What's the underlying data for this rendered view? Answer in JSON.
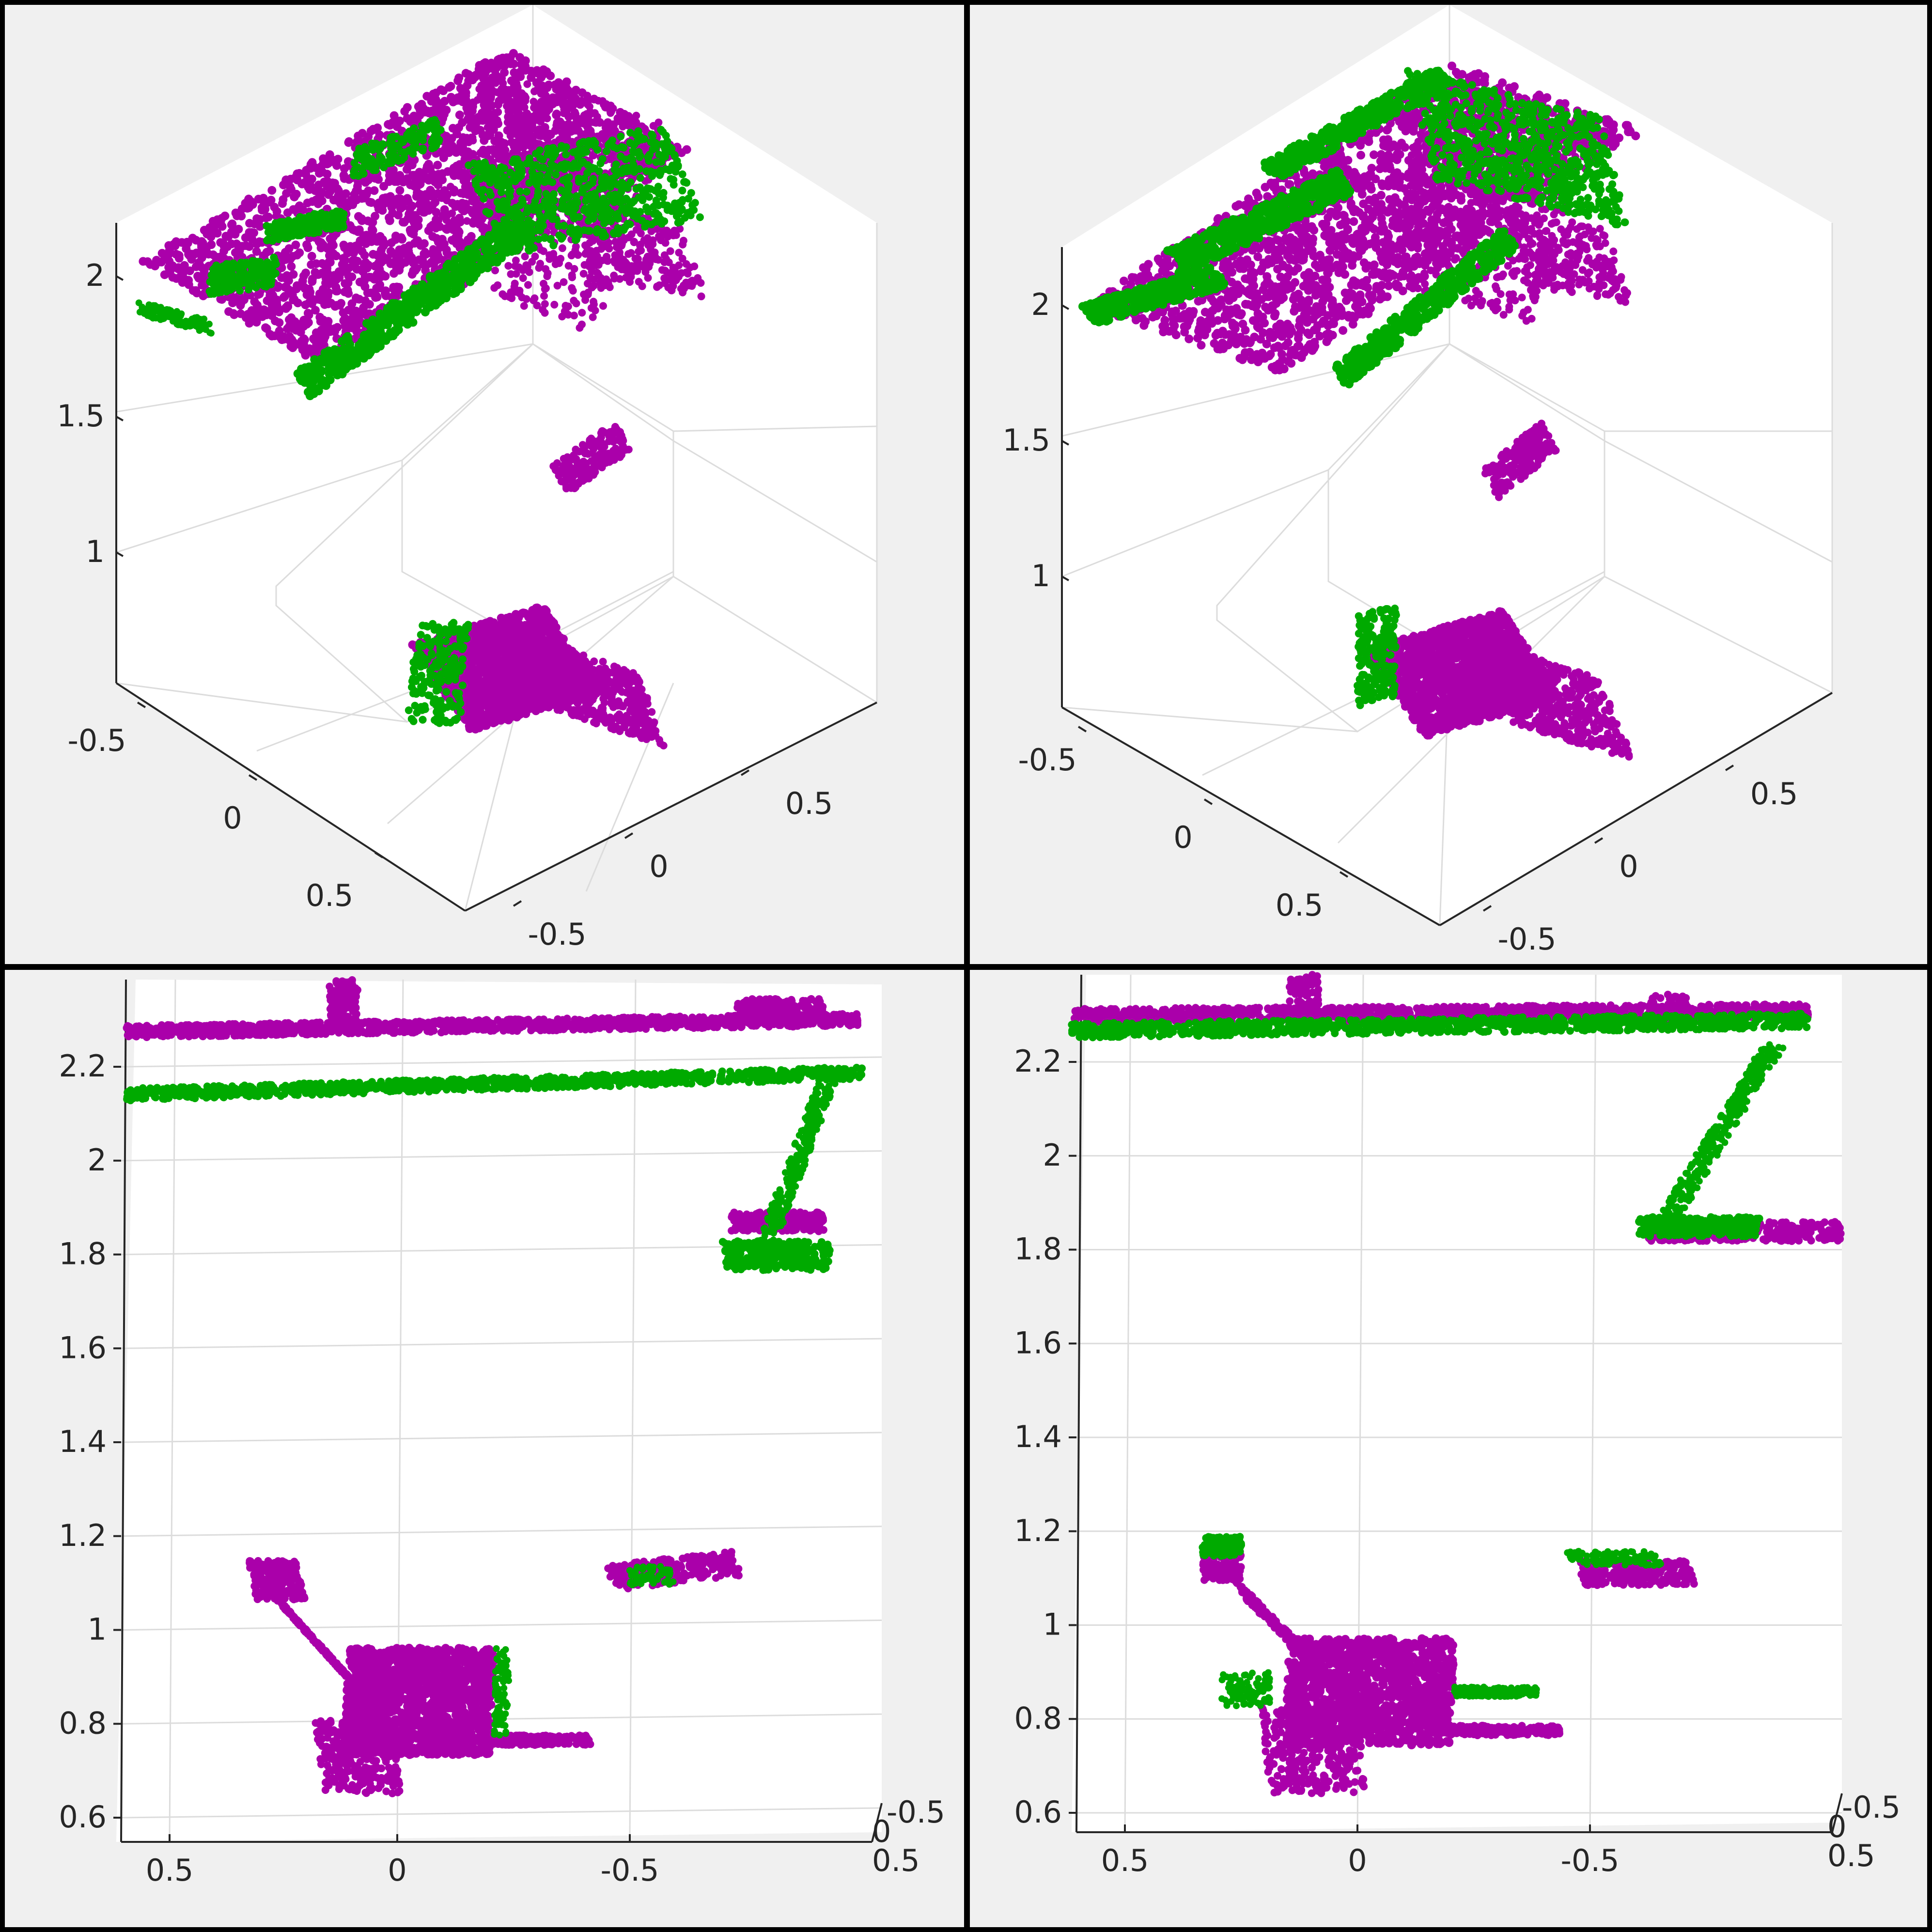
{
  "colors": {
    "background": "#f0f0f0",
    "axes_face": "#ffffff",
    "grid": "#dcdcdc",
    "axis_line": "#262626",
    "source_cloud": "#aa00aa",
    "target_cloud": "#00aa00",
    "border": "#000000"
  },
  "chart_data": [
    {
      "type": "scatter",
      "projection": "3d-isometric",
      "panel": "top-left",
      "title": "",
      "z_ticks": [
        "1",
        "1.5",
        "2"
      ],
      "x_ticks": [
        "-0.5",
        "0",
        "0.5"
      ],
      "y_ticks": [
        "-0.5",
        "0",
        "0.5"
      ],
      "grid": true,
      "series": [
        {
          "color_key": "source_cloud",
          "points": "magenta"
        },
        {
          "color_key": "target_cloud",
          "points": "green"
        }
      ]
    },
    {
      "type": "scatter",
      "projection": "3d-isometric",
      "panel": "top-right",
      "title": "",
      "z_ticks": [
        "1",
        "1.5",
        "2"
      ],
      "x_ticks": [
        "-0.5",
        "0",
        "0.5"
      ],
      "y_ticks": [
        "-0.5",
        "0",
        "0.5"
      ],
      "grid": true,
      "series": [
        {
          "color_key": "source_cloud",
          "points": "magenta"
        },
        {
          "color_key": "target_cloud",
          "points": "green"
        }
      ]
    },
    {
      "type": "scatter",
      "projection": "3d-side",
      "panel": "bottom-left",
      "title": "",
      "z_ticks": [
        "0.6",
        "0.8",
        "1",
        "1.2",
        "1.4",
        "1.6",
        "1.8",
        "2",
        "2.2"
      ],
      "x_ticks": [
        "0.5",
        "0",
        "-0.5"
      ],
      "depth_ticks": [
        "-0.5",
        "0",
        "0.5"
      ],
      "grid": true,
      "series": [
        {
          "color_key": "source_cloud",
          "points": "magenta"
        },
        {
          "color_key": "target_cloud",
          "points": "green"
        }
      ]
    },
    {
      "type": "scatter",
      "projection": "3d-side",
      "panel": "bottom-right",
      "title": "",
      "z_ticks": [
        "0.6",
        "0.8",
        "1",
        "1.2",
        "1.4",
        "1.6",
        "1.8",
        "2",
        "2.2"
      ],
      "x_ticks": [
        "0.5",
        "0",
        "-0.5"
      ],
      "depth_ticks": [
        "-0.5",
        "0",
        "0.5"
      ],
      "grid": true,
      "series": [
        {
          "color_key": "source_cloud",
          "points": "magenta"
        },
        {
          "color_key": "target_cloud",
          "points": "green"
        }
      ]
    }
  ]
}
